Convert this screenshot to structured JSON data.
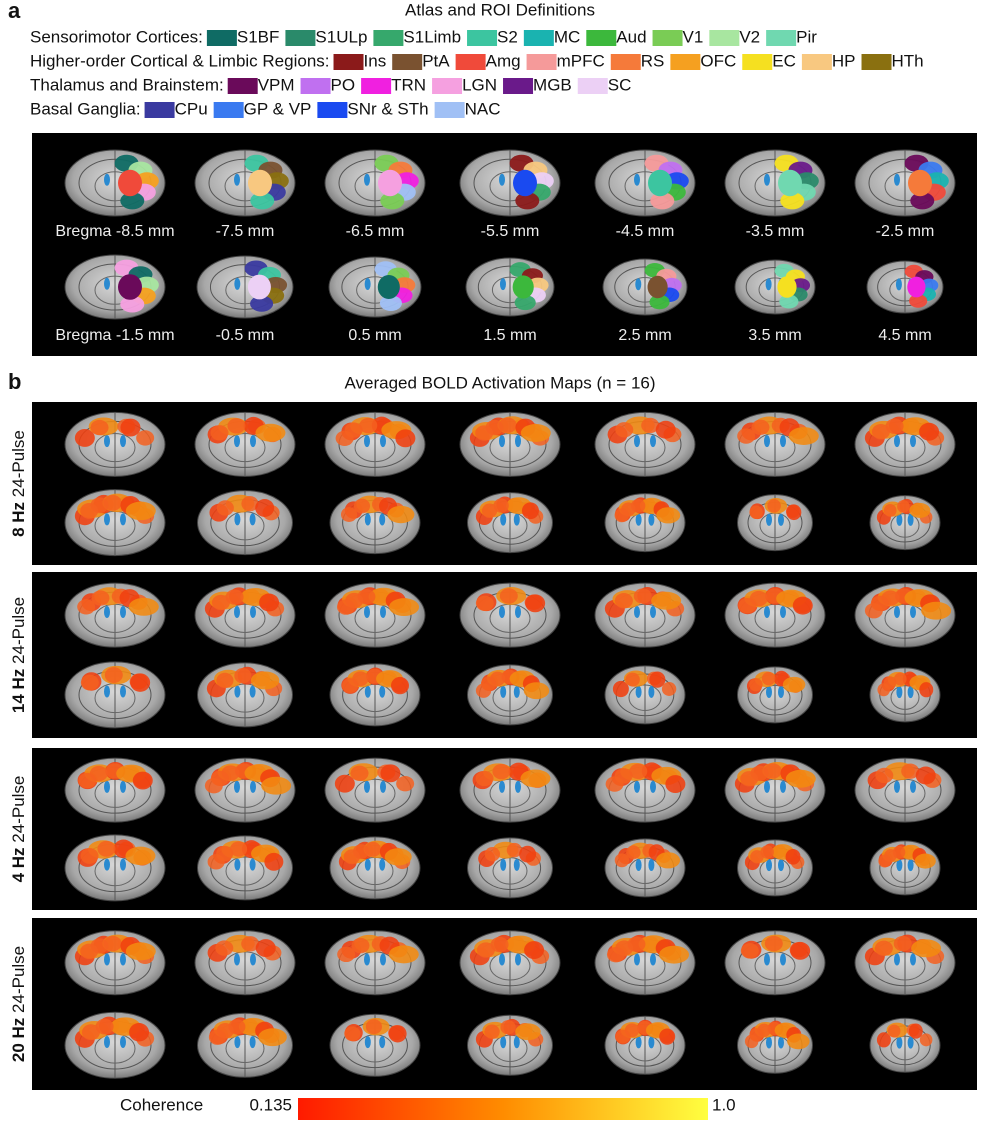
{
  "panel_a": {
    "letter": "a",
    "title": "Atlas and ROI Definitions",
    "legend": [
      {
        "label": "Sensorimotor Cortices:",
        "items": [
          {
            "name": "S1BF",
            "color": "#0f6b64"
          },
          {
            "name": "S1ULp",
            "color": "#2a8a6a"
          },
          {
            "name": "S1Limb",
            "color": "#36a86c"
          },
          {
            "name": "S2",
            "color": "#3cc5a0"
          },
          {
            "name": "MC",
            "color": "#1ab3b0"
          },
          {
            "name": "Aud",
            "color": "#3cb83c"
          },
          {
            "name": "V1",
            "color": "#7acc55"
          },
          {
            "name": "V2",
            "color": "#a8e6a0"
          },
          {
            "name": "Pir",
            "color": "#70d8b0"
          }
        ]
      },
      {
        "label": "Higher-order Cortical & Limbic Regions:",
        "items": [
          {
            "name": "Ins",
            "color": "#8b1a1a"
          },
          {
            "name": "PtA",
            "color": "#7a5230"
          },
          {
            "name": "Amg",
            "color": "#f04a3a"
          },
          {
            "name": "mPFC",
            "color": "#f59a9a"
          },
          {
            "name": "RS",
            "color": "#f57a3a"
          },
          {
            "name": "OFC",
            "color": "#f5a020"
          },
          {
            "name": "EC",
            "color": "#f5e020"
          },
          {
            "name": "HP",
            "color": "#f8c880"
          },
          {
            "name": "HTh",
            "color": "#8a7010"
          }
        ]
      },
      {
        "label": "Thalamus and Brainstem:",
        "items": [
          {
            "name": "VPM",
            "color": "#6a0a5a"
          },
          {
            "name": "PO",
            "color": "#c070f0"
          },
          {
            "name": "TRN",
            "color": "#f020e0"
          },
          {
            "name": "LGN",
            "color": "#f5a0e0"
          },
          {
            "name": "MGB",
            "color": "#6a1a8a"
          },
          {
            "name": "SC",
            "color": "#ecd0f5"
          }
        ]
      },
      {
        "label": "Basal Ganglia:",
        "items": [
          {
            "name": "CPu",
            "color": "#3a3aa0"
          },
          {
            "name": "GP & VP",
            "color": "#3a7af0"
          },
          {
            "name": "SNr & STh",
            "color": "#1a4af0"
          },
          {
            "name": "NAC",
            "color": "#a0c0f5"
          }
        ]
      }
    ],
    "slice_labels": [
      [
        "Bregma -8.5 mm",
        "-7.5 mm",
        "-6.5 mm",
        "-5.5 mm",
        "-4.5 mm",
        "-3.5 mm",
        "-2.5 mm"
      ],
      [
        "Bregma -1.5 mm",
        "-0.5 mm",
        "0.5 mm",
        "1.5 mm",
        "2.5 mm",
        "3.5 mm",
        "4.5 mm"
      ]
    ]
  },
  "panel_b": {
    "letter": "b",
    "title": "Averaged BOLD Activation Maps (n = 16)",
    "conditions": [
      {
        "frequency": "8 Hz",
        "pulse": "24-Pulse"
      },
      {
        "frequency": "14 Hz",
        "pulse": "24-Pulse"
      },
      {
        "frequency": "4 Hz",
        "pulse": "24-Pulse"
      },
      {
        "frequency": "20 Hz",
        "pulse": "24-Pulse"
      }
    ],
    "colorbar": {
      "label": "Coherence",
      "ticks": [
        0.135,
        {
          "value": 1,
          "label": "1.0"
        }
      ],
      "colors": [
        "#ff1a00",
        "#ff8c00",
        "#ffff40"
      ]
    }
  }
}
